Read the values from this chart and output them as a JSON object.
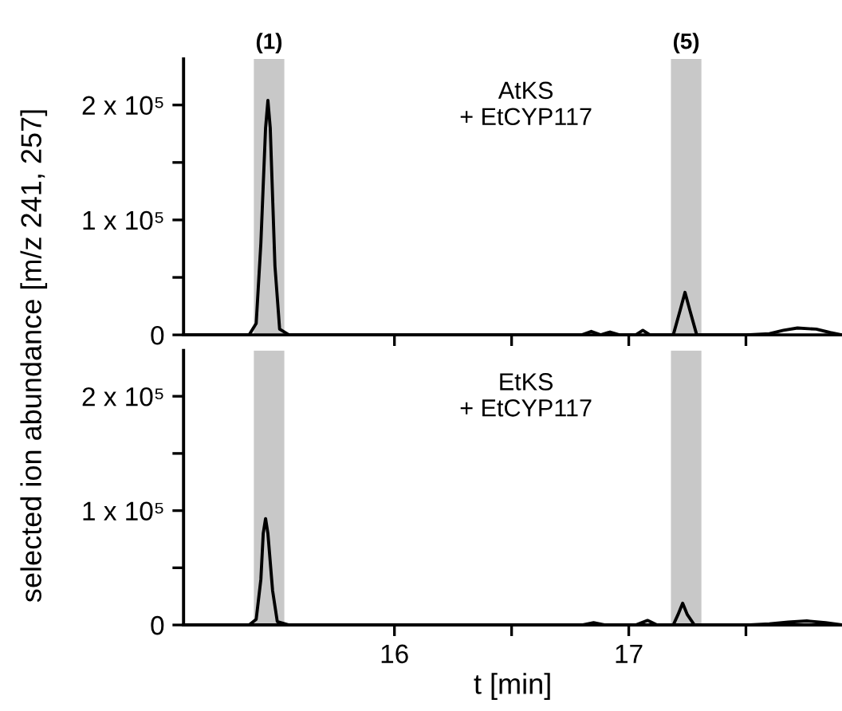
{
  "chart_data": [
    {
      "type": "line",
      "ylabel": "selected ion abundance [m/z 241, 257]",
      "annotations": [
        "AtKS\n+ EtCYP117"
      ],
      "x": [
        15.1,
        15.38,
        15.41,
        15.43,
        15.45,
        15.46,
        15.47,
        15.49,
        15.51,
        15.55,
        15.8,
        16.2,
        16.6,
        16.8,
        16.84,
        16.88,
        16.92,
        16.96,
        17.03,
        17.06,
        17.09,
        17.19,
        17.22,
        17.24,
        17.26,
        17.29,
        17.5,
        17.6,
        17.66,
        17.72,
        17.8,
        17.86,
        17.91
      ],
      "series": [
        {
          "color": "#000000",
          "values": [
            0,
            0,
            10000,
            80000,
            180000,
            204000,
            180000,
            60000,
            5000,
            0,
            0,
            0,
            0,
            0,
            3000,
            0,
            2500,
            0,
            0,
            4000,
            0,
            0,
            22000,
            37000,
            22000,
            0,
            0,
            1000,
            4000,
            6000,
            5000,
            2000,
            0
          ]
        }
      ],
      "xlim": [
        15.1,
        17.91
      ],
      "xticks": [
        {
          "value": 16,
          "label": null
        },
        {
          "value": 16.5,
          "label": null
        },
        {
          "value": 17,
          "label": null
        },
        {
          "value": 17.5,
          "label": null
        }
      ],
      "ylim": [
        0,
        240000
      ],
      "yticks": [
        {
          "value": 0,
          "label": "0"
        },
        {
          "value": 50000,
          "label": null
        },
        {
          "value": 100000,
          "label": "1 x 10⁵"
        },
        {
          "value": 150000,
          "label": null
        },
        {
          "value": 200000,
          "label": "2 x 10⁵"
        }
      ],
      "bands": [
        {
          "axis": "x",
          "from": 15.4,
          "to": 15.53,
          "label": "(1)",
          "color": "#c8c8c8"
        },
        {
          "axis": "x",
          "from": 17.18,
          "to": 17.31,
          "label": "(5)",
          "color": "#c8c8c8"
        }
      ],
      "tick_labels": "y",
      "grid": false,
      "legend": false
    },
    {
      "type": "line",
      "xlabel": "t [min]",
      "annotations": [
        "EtKS\n+ EtCYP117"
      ],
      "x": [
        15.1,
        15.38,
        15.41,
        15.43,
        15.44,
        15.45,
        15.46,
        15.48,
        15.5,
        15.55,
        15.8,
        16.2,
        16.6,
        16.8,
        16.85,
        16.9,
        17.03,
        17.08,
        17.12,
        17.19,
        17.21,
        17.23,
        17.25,
        17.28,
        17.5,
        17.6,
        17.68,
        17.76,
        17.84,
        17.91
      ],
      "series": [
        {
          "color": "#000000",
          "values": [
            0,
            0,
            5000,
            40000,
            80000,
            93000,
            80000,
            30000,
            3000,
            0,
            0,
            0,
            0,
            0,
            2000,
            0,
            0,
            4000,
            0,
            0,
            9000,
            19000,
            9000,
            0,
            0,
            1000,
            2500,
            3500,
            2000,
            0
          ]
        }
      ],
      "xlim": [
        15.1,
        17.91
      ],
      "xticks": [
        {
          "value": 16,
          "label": "16"
        },
        {
          "value": 16.5,
          "label": null
        },
        {
          "value": 17,
          "label": "17"
        },
        {
          "value": 17.5,
          "label": null
        }
      ],
      "ylim": [
        0,
        240000
      ],
      "yticks": [
        {
          "value": 0,
          "label": "0"
        },
        {
          "value": 50000,
          "label": null
        },
        {
          "value": 100000,
          "label": "1 x 10⁵"
        },
        {
          "value": 150000,
          "label": null
        },
        {
          "value": 200000,
          "label": "2 x 10⁵"
        }
      ],
      "bands": [
        {
          "axis": "x",
          "from": 15.4,
          "to": 15.53,
          "color": "#c8c8c8"
        },
        {
          "axis": "x",
          "from": 17.18,
          "to": 17.31,
          "color": "#c8c8c8"
        }
      ],
      "grid": false,
      "legend": false
    }
  ]
}
